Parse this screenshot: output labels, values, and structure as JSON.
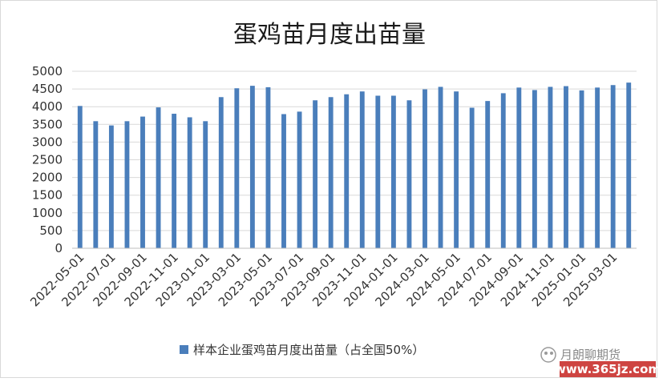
{
  "chart_data": {
    "type": "bar",
    "title": "蛋鸡苗月度出苗量",
    "xlabel": "",
    "ylabel": "",
    "ylim": [
      0,
      5000
    ],
    "yticks": [
      0,
      500,
      1000,
      1500,
      2000,
      2500,
      3000,
      3500,
      4000,
      4500,
      5000
    ],
    "grid": "horizontal",
    "legend_position": "bottom",
    "bar_color": "#4a7ebb",
    "categories": [
      "2022-05-01",
      "2022-06-01",
      "2022-07-01",
      "2022-08-01",
      "2022-09-01",
      "2022-10-01",
      "2022-11-01",
      "2022-12-01",
      "2023-01-01",
      "2023-02-01",
      "2023-03-01",
      "2023-04-01",
      "2023-05-01",
      "2023-06-01",
      "2023-07-01",
      "2023-08-01",
      "2023-09-01",
      "2023-10-01",
      "2023-11-01",
      "2023-12-01",
      "2024-01-01",
      "2024-02-01",
      "2024-03-01",
      "2024-04-01",
      "2024-05-01",
      "2024-06-01",
      "2024-07-01",
      "2024-08-01",
      "2024-09-01",
      "2024-10-01",
      "2024-11-01",
      "2024-12-01",
      "2025-01-01",
      "2025-02-01",
      "2025-03-01",
      "2025-04-01"
    ],
    "x_tick_labels": [
      "2022-05-01",
      "2022-07-01",
      "2022-09-01",
      "2022-11-01",
      "2023-01-01",
      "2023-03-01",
      "2023-05-01",
      "2023-07-01",
      "2023-09-01",
      "2023-11-01",
      "2024-01-01",
      "2024-03-01",
      "2024-05-01",
      "2024-07-01",
      "2024-09-01",
      "2024-11-01",
      "2025-01-01",
      "2025-03-01"
    ],
    "series": [
      {
        "name": "样本企业蛋鸡苗月度出苗量（占全国50%）",
        "values": [
          4020,
          3590,
          3470,
          3590,
          3720,
          3980,
          3800,
          3700,
          3590,
          4270,
          4520,
          4590,
          4550,
          3790,
          3860,
          4180,
          4270,
          4350,
          4430,
          4310,
          4310,
          4180,
          4490,
          4560,
          4430,
          3970,
          4160,
          4380,
          4540,
          4470,
          4560,
          4580,
          4460,
          4540,
          4610,
          4680
        ]
      }
    ]
  },
  "watermark": {
    "brand": "月朗聊期货",
    "url": "www.365jz.com"
  }
}
